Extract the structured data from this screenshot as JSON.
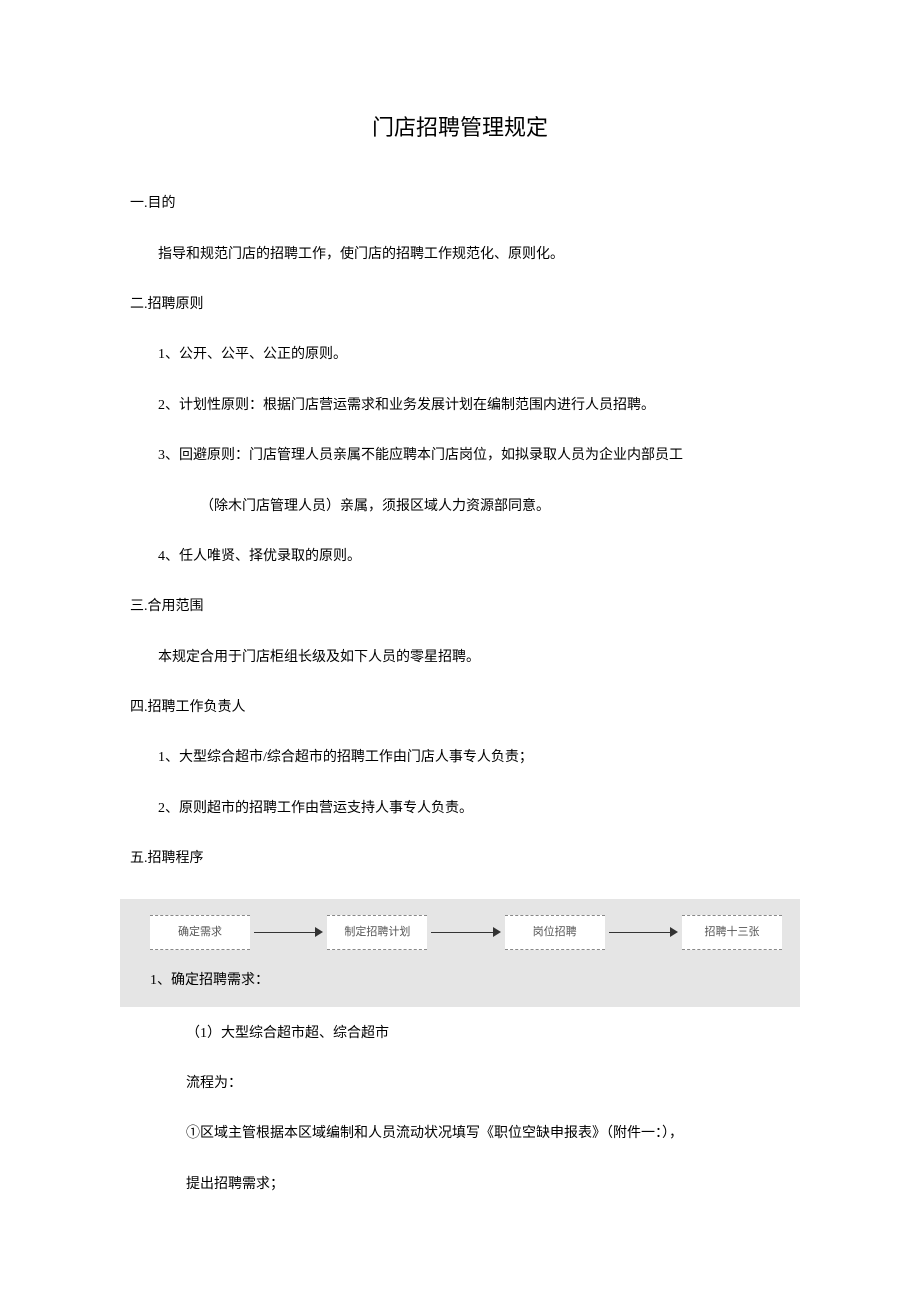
{
  "title": "门店招聘管理规定",
  "sections": {
    "s1": {
      "heading": "一.目的",
      "body": "指导和规范门店的招聘工作，使门店的招聘工作规范化、原则化。"
    },
    "s2": {
      "heading": "二.招聘原则",
      "items": {
        "i1": "1、公开、公平、公正的原则。",
        "i2": "2、计划性原则：根据门店营运需求和业务发展计划在编制范围内进行人员招聘。",
        "i3a": "3、回避原则：门店管理人员亲属不能应聘本门店岗位，如拟录取人员为企业内部员工",
        "i3b": "（除木门店管理人员）亲属，须报区域人力资源部同意。",
        "i4": "4、任人唯贤、择优录取的原则。"
      }
    },
    "s3": {
      "heading": "三.合用范围",
      "body": "本规定合用于门店柜组长级及如下人员的零星招聘。"
    },
    "s4": {
      "heading": "四.招聘工作负责人",
      "items": {
        "i1": "1、大型综合超市/综合超市的招聘工作由门店人事专人负责；",
        "i2": "2、原则超市的招聘工作由营运支持人事专人负责。"
      }
    },
    "s5": {
      "heading": "五.招聘程序",
      "flow": {
        "box1": "确定需求",
        "box2": "制定招聘计划",
        "box3": "岗位招聘",
        "box4": "招聘十三张",
        "label": "1、确定招聘需求："
      },
      "sub": {
        "a": "（1）大型综合超市超、综合超市",
        "b": "流程为：",
        "c": "①区域主管根据本区域编制和人员流动状况填写《职位空缺申报表》（附件一：），",
        "d": "提出招聘需求；"
      }
    }
  },
  "colors": {
    "page_bg": "#ffffff",
    "text": "#000000",
    "flow_bg": "#e5e5e5",
    "flow_box_bg": "#ffffff",
    "flow_box_text": "#555555"
  },
  "typography": {
    "title_fontsize": 22,
    "body_fontsize": 14,
    "flow_box_fontsize": 11
  }
}
